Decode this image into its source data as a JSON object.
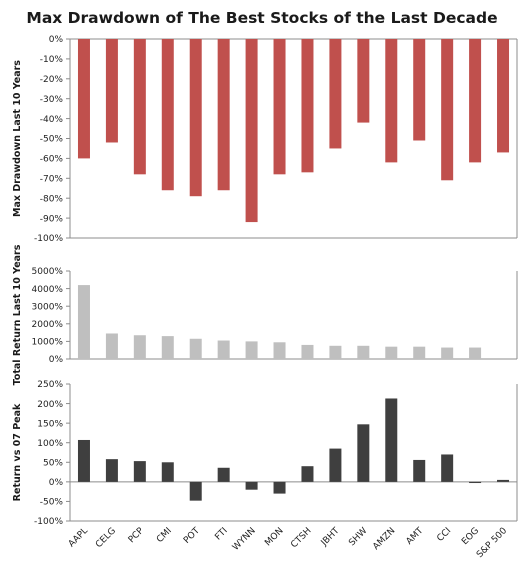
{
  "title": "Max Drawdown of The Best Stocks of the Last Decade",
  "chart_data": {
    "type": "bar",
    "categories": [
      "AAPL",
      "CELG",
      "PCP",
      "CMI",
      "POT",
      "FTI",
      "WYNN",
      "MON",
      "CTSH",
      "JBHT",
      "SHW",
      "AMZN",
      "AMT",
      "CCI",
      "EOG",
      "S&P 500"
    ],
    "panels": [
      {
        "ylabel": "Max Drawdown Last 10 Years",
        "color": "#c0504d",
        "ylim": [
          -100,
          0
        ],
        "yticks": [
          0,
          -10,
          -20,
          -30,
          -40,
          -50,
          -60,
          -70,
          -80,
          -90,
          -100
        ],
        "tick_labels": [
          "0%",
          "-10%",
          "-20%",
          "-30%",
          "-40%",
          "-50%",
          "-60%",
          "-70%",
          "-80%",
          "-90%",
          "-100%"
        ],
        "values": [
          -60,
          -52,
          -68,
          -76,
          -79,
          -76,
          -92,
          -68,
          -67,
          -55,
          -42,
          -62,
          -51,
          -71,
          -62,
          -57
        ]
      },
      {
        "ylabel": "Total Return Last 10 Years",
        "color": "#bfbfbf",
        "ylim": [
          0,
          5000
        ],
        "yticks": [
          0,
          1000,
          2000,
          3000,
          4000,
          5000
        ],
        "tick_labels": [
          "0%",
          "1000%",
          "2000%",
          "3000%",
          "4000%",
          "5000%"
        ],
        "values": [
          4200,
          1450,
          1350,
          1300,
          1150,
          1050,
          1000,
          950,
          800,
          750,
          750,
          700,
          700,
          650,
          650,
          null
        ]
      },
      {
        "ylabel": "Return vs 07 Peak",
        "color": "#3f3f3f",
        "ylim": [
          -100,
          250
        ],
        "yticks": [
          250,
          200,
          150,
          100,
          50,
          0,
          -50,
          -100
        ],
        "tick_labels": [
          "250%",
          "200%",
          "150%",
          "100%",
          "50%",
          "0%",
          "-50%",
          "-100%"
        ],
        "values": [
          107,
          58,
          53,
          50,
          -48,
          36,
          -20,
          -30,
          40,
          85,
          147,
          213,
          56,
          70,
          -3,
          5
        ]
      }
    ]
  }
}
